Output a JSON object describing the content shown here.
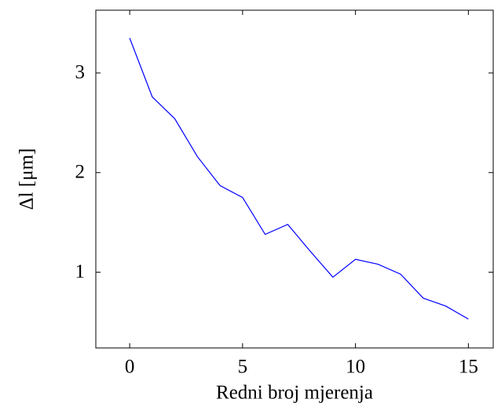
{
  "chart_data": {
    "type": "line",
    "x_label": "Redni broj mjerenja",
    "y_label": "Δl [μm]",
    "x": [
      0,
      1,
      2,
      3,
      4,
      5,
      6,
      7,
      8,
      9,
      10,
      11,
      12,
      13,
      14,
      15
    ],
    "series": [
      {
        "name": "Δl",
        "color": "#0000ff",
        "values": [
          3.35,
          2.76,
          2.54,
          2.16,
          1.87,
          1.75,
          1.38,
          1.48,
          1.21,
          0.95,
          1.13,
          1.08,
          0.98,
          0.74,
          0.66,
          0.53
        ]
      }
    ],
    "xlim": [
      -1.5,
      16.1
    ],
    "xticks": [
      0,
      5,
      10,
      15
    ],
    "ylim": [
      0.24,
      3.63
    ],
    "yticks": [
      1,
      2,
      3
    ],
    "grid": false
  }
}
